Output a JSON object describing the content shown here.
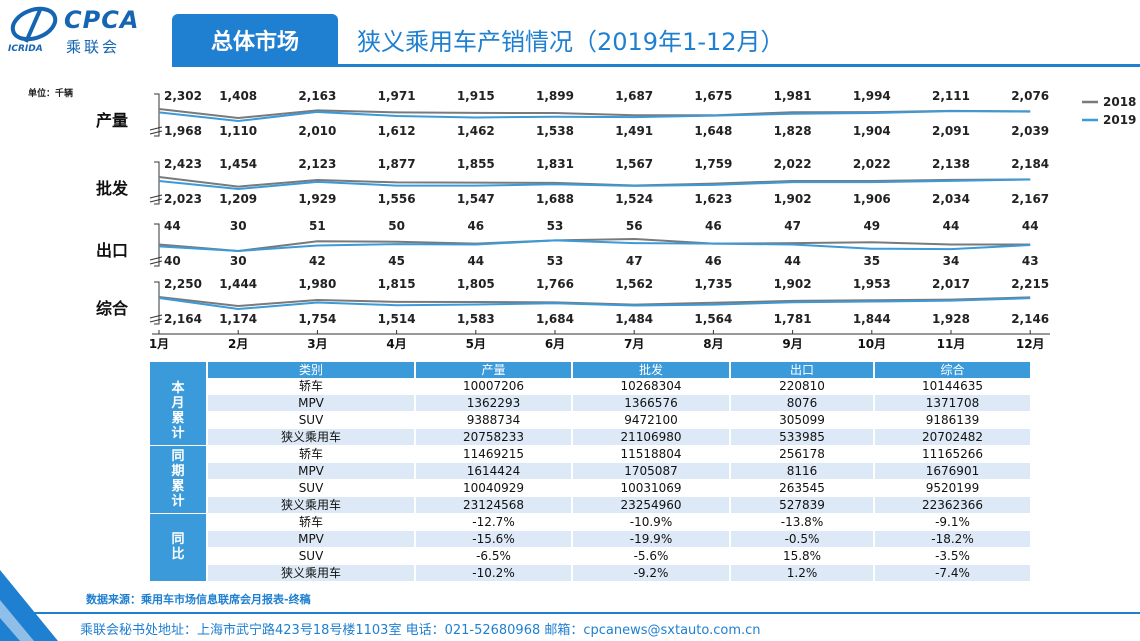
{
  "header": {
    "logo_text": "CPCA",
    "logo_sub": "乘联会",
    "logo_small": "ICRIDA",
    "section_tab": "总体市场",
    "title": "狭义乘用车产销情况（2019年1-12月）"
  },
  "unit_label": "单位：千辆",
  "colors": {
    "s2018": "#7a7a7a",
    "s2019": "#3c9ad8",
    "accent": "#1f7fd0"
  },
  "chart_data": {
    "type": "line",
    "months": [
      "1月",
      "2月",
      "3月",
      "4月",
      "5月",
      "6月",
      "7月",
      "8月",
      "9月",
      "10月",
      "11月",
      "12月"
    ],
    "legend": [
      {
        "name": "2018"
      },
      {
        "name": "2019"
      }
    ],
    "legend_position": "top-right",
    "panels": [
      {
        "label": "产量",
        "s2018": [
          2302,
          1408,
          2163,
          1971,
          1915,
          1899,
          1687,
          1675,
          1981,
          1994,
          2111,
          2076
        ],
        "s2019": [
          1968,
          1110,
          2010,
          1612,
          1462,
          1538,
          1491,
          1648,
          1828,
          1904,
          2091,
          2039
        ]
      },
      {
        "label": "批发",
        "s2018": [
          2423,
          1454,
          2123,
          1877,
          1855,
          1831,
          1567,
          1759,
          2022,
          2022,
          2138,
          2184
        ],
        "s2019": [
          2023,
          1209,
          1929,
          1556,
          1547,
          1688,
          1524,
          1623,
          1902,
          1906,
          2034,
          2167
        ]
      },
      {
        "label": "出口",
        "s2018": [
          44,
          30,
          51,
          50,
          46,
          53,
          56,
          46,
          47,
          49,
          44,
          44
        ],
        "s2019": [
          40,
          30,
          42,
          45,
          44,
          53,
          47,
          46,
          44,
          35,
          34,
          43
        ]
      },
      {
        "label": "综合",
        "s2018": [
          2250,
          1444,
          1980,
          1815,
          1805,
          1766,
          1562,
          1735,
          1902,
          1953,
          2017,
          2215
        ],
        "s2019": [
          2164,
          1174,
          1754,
          1514,
          1583,
          1684,
          1484,
          1564,
          1781,
          1844,
          1928,
          2146
        ]
      }
    ]
  },
  "table": {
    "headers": [
      "类别",
      "产量",
      "批发",
      "出口",
      "综合"
    ],
    "groups": [
      {
        "label": "本月累计",
        "rows": [
          [
            "轿车",
            "10007206",
            "10268304",
            "220810",
            "10144635"
          ],
          [
            "MPV",
            "1362293",
            "1366576",
            "8076",
            "1371708"
          ],
          [
            "SUV",
            "9388734",
            "9472100",
            "305099",
            "9186139"
          ],
          [
            "狭义乘用车",
            "20758233",
            "21106980",
            "533985",
            "20702482"
          ]
        ]
      },
      {
        "label": "同期累计",
        "rows": [
          [
            "轿车",
            "11469215",
            "11518804",
            "256178",
            "11165266"
          ],
          [
            "MPV",
            "1614424",
            "1705087",
            "8116",
            "1676901"
          ],
          [
            "SUV",
            "10040929",
            "10031069",
            "263545",
            "9520199"
          ],
          [
            "狭义乘用车",
            "23124568",
            "23254960",
            "527839",
            "22362366"
          ]
        ]
      },
      {
        "label": "同比",
        "rows": [
          [
            "轿车",
            "-12.7%",
            "-10.9%",
            "-13.8%",
            "-9.1%"
          ],
          [
            "MPV",
            "-15.6%",
            "-19.9%",
            "-0.5%",
            "-18.2%"
          ],
          [
            "SUV",
            "-6.5%",
            "-5.6%",
            "15.8%",
            "-3.5%"
          ],
          [
            "狭义乘用车",
            "-10.2%",
            "-9.2%",
            "1.2%",
            "-7.4%"
          ]
        ]
      }
    ]
  },
  "source": "数据来源：乘用车市场信息联席会月报表-终稿",
  "footer": "乘联会秘书处地址：上海市武宁路423号18号楼1103室  电话：021-52680968   邮箱：cpcanews@sxtauto.com.cn"
}
